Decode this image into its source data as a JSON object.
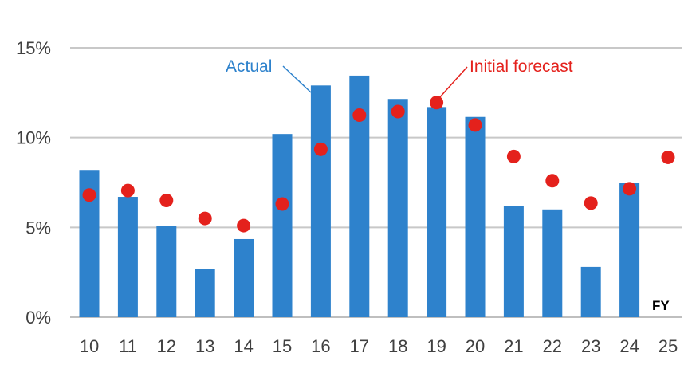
{
  "chart_data": {
    "type": "bar",
    "categories": [
      "10",
      "11",
      "12",
      "13",
      "14",
      "15",
      "16",
      "17",
      "18",
      "19",
      "20",
      "21",
      "22",
      "23",
      "24",
      "25"
    ],
    "series": [
      {
        "name": "Actual",
        "type": "bar",
        "color": "#2e82cc",
        "values": [
          8.2,
          6.7,
          5.1,
          2.7,
          4.35,
          10.2,
          12.9,
          13.45,
          12.15,
          11.7,
          11.15,
          6.2,
          6.0,
          2.8,
          7.5,
          null
        ]
      },
      {
        "name": "Initial forecast",
        "type": "scatter",
        "color": "#e4211c",
        "values": [
          6.8,
          7.05,
          6.5,
          5.5,
          5.1,
          6.3,
          9.35,
          11.25,
          11.45,
          11.95,
          10.7,
          8.95,
          7.6,
          6.35,
          7.15,
          8.9
        ]
      }
    ],
    "y_ticks": [
      "0%",
      "5%",
      "10%",
      "15%"
    ],
    "y_tick_values": [
      0,
      5,
      10,
      15
    ],
    "ylim": [
      0,
      15
    ],
    "x_unit_label": "FY",
    "annotations": {
      "actual": "Actual",
      "forecast": "Initial forecast"
    },
    "grid": true,
    "gridline_color": "#c8c8c8",
    "text_color": "#404040",
    "title": "",
    "xlabel": "",
    "ylabel": ""
  }
}
